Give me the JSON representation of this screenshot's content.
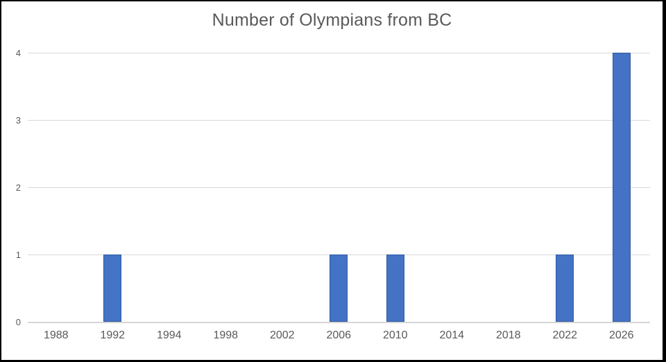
{
  "window": {
    "background": "#ffffff",
    "frame_color": "#000000"
  },
  "chart_data": {
    "type": "bar",
    "title": "Number of Olympians from BC",
    "categories": [
      "1988",
      "1992",
      "1994",
      "1998",
      "2002",
      "2006",
      "2010",
      "2014",
      "2018",
      "2022",
      "2026"
    ],
    "values": [
      0,
      1,
      0,
      0,
      0,
      1,
      1,
      0,
      0,
      1,
      4
    ],
    "xlabel": "",
    "ylabel": "",
    "ylim": [
      0,
      4
    ],
    "yticks": [
      0,
      1,
      2,
      3,
      4
    ],
    "grid": true,
    "legend": "none",
    "bar_color": "#4472C4",
    "bar_edge_color": "#2e5aa0",
    "gridline_color": "#d9d9d9",
    "axis_line_color": "#d6d6d6",
    "tick_label_color": "#595959",
    "title_color": "#595959",
    "background_color": "#ffffff"
  }
}
